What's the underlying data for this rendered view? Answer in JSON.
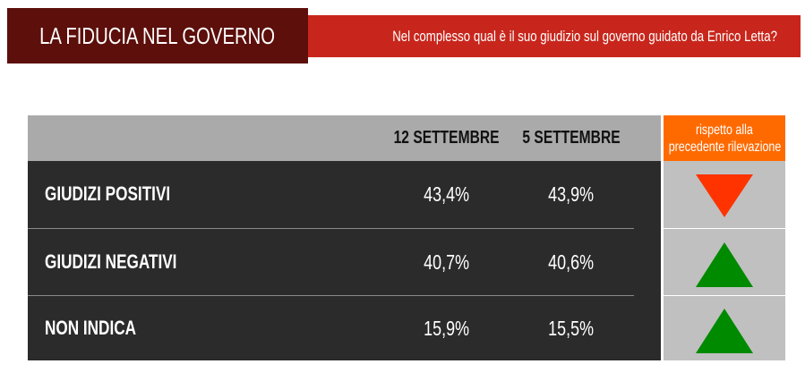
{
  "title": "LA FIDUCIA NEL GOVERNO",
  "question": "Nel complesso qual è il suo giudizio sul governo guidato da Enrico Letta?",
  "colors": {
    "title_bg": "#5c0f0b",
    "question_bg": "#c8261c",
    "header_bg": "#aaaaaa",
    "change_header_bg": "#ff6a00",
    "rows_bg": "#2b2b2b",
    "change_col_bg": "#c0c0c0",
    "down": "#ff3300",
    "up": "#008a00"
  },
  "chart_data": {
    "type": "table",
    "columns": [
      "12 SETTEMBRE",
      "5 SETTEMBRE"
    ],
    "change_header": [
      "rispetto alla",
      "precedente rilevazione"
    ],
    "rows": [
      {
        "label": "GIUDIZI POSITIVI",
        "values": [
          "43,4%",
          "43,9%"
        ],
        "change": "down",
        "change_icon": "triangle-down-icon"
      },
      {
        "label": "GIUDIZI NEGATIVI",
        "values": [
          "40,7%",
          "40,6%"
        ],
        "change": "up",
        "change_icon": "triangle-up-icon"
      },
      {
        "label": "NON INDICA",
        "values": [
          "15,9%",
          "15,5%"
        ],
        "change": "up",
        "change_icon": "triangle-up-icon"
      }
    ]
  }
}
